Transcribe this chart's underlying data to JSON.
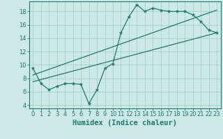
{
  "xlabel": "Humidex (Indice chaleur)",
  "background_color": "#cce9e7",
  "grid_color": "#aad4d1",
  "line_color": "#1a7a6e",
  "xlim": [
    -0.5,
    23.5
  ],
  "ylim": [
    3.5,
    19.5
  ],
  "xticks": [
    0,
    1,
    2,
    3,
    4,
    5,
    6,
    7,
    8,
    9,
    10,
    11,
    12,
    13,
    14,
    15,
    16,
    17,
    18,
    19,
    20,
    21,
    22,
    23
  ],
  "yticks": [
    4,
    6,
    8,
    10,
    12,
    14,
    16,
    18
  ],
  "series1_x": [
    0,
    1,
    2,
    3,
    4,
    5,
    6,
    7,
    8,
    9,
    10,
    11,
    12,
    13,
    14,
    15,
    16,
    17,
    18,
    19,
    20,
    21,
    22,
    23
  ],
  "series1_y": [
    9.5,
    7.2,
    6.3,
    6.8,
    7.2,
    7.2,
    7.1,
    4.2,
    6.3,
    9.5,
    10.2,
    14.8,
    17.2,
    19.0,
    18.0,
    18.5,
    18.2,
    18.0,
    18.0,
    18.0,
    17.5,
    16.5,
    15.2,
    14.8
  ],
  "series2_x": [
    0,
    23
  ],
  "series2_y": [
    7.5,
    14.8
  ],
  "series3_x": [
    0,
    23
  ],
  "series3_y": [
    8.5,
    18.2
  ],
  "fontsize_tick": 6,
  "fontsize_label": 7.5
}
